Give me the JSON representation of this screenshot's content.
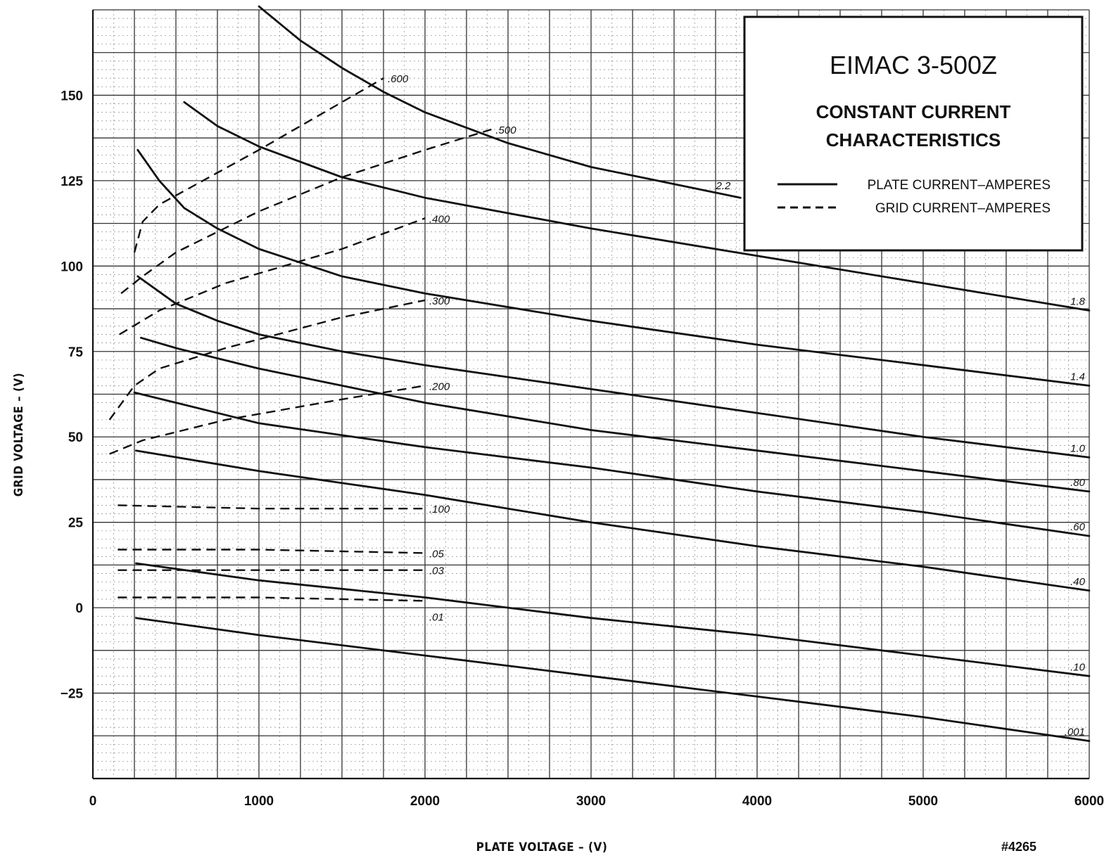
{
  "chart_data": {
    "type": "line",
    "title": "EIMAC 3-500Z",
    "subtitle_line1": "CONSTANT CURRENT",
    "subtitle_line2": "CHARACTERISTICS",
    "xlabel": "PLATE VOLTAGE – (V)",
    "ylabel": "GRID VOLTAGE – (V)",
    "reference": "#4265",
    "xlim": [
      0,
      6000
    ],
    "ylim": [
      -50,
      175
    ],
    "xticks": [
      0,
      1000,
      2000,
      3000,
      4000,
      5000,
      6000
    ],
    "yticks": [
      -25,
      0,
      25,
      50,
      75,
      100,
      125,
      150
    ],
    "xtick_labels": [
      "0",
      "1000",
      "2000",
      "3000",
      "4000",
      "5000",
      "6000"
    ],
    "ytick_labels": [
      "−25",
      "0",
      "25",
      "50",
      "75",
      "100",
      "125",
      "150"
    ],
    "grid": true,
    "legend": {
      "position": "top-right",
      "entries": [
        {
          "style": "solid",
          "label": "PLATE CURRENT–AMPERES"
        },
        {
          "style": "dashed",
          "label": "GRID CURRENT–AMPERES"
        }
      ]
    },
    "series": [
      {
        "group": "plate",
        "label": "2.2",
        "points": [
          [
            1000,
            176
          ],
          [
            1250,
            166
          ],
          [
            1500,
            158
          ],
          [
            1750,
            151
          ],
          [
            2000,
            145
          ],
          [
            2500,
            136
          ],
          [
            3000,
            129
          ],
          [
            3500,
            124
          ],
          [
            3900,
            120
          ]
        ]
      },
      {
        "group": "plate",
        "label": "1.8",
        "points": [
          [
            550,
            148
          ],
          [
            750,
            141
          ],
          [
            1000,
            135
          ],
          [
            1500,
            126
          ],
          [
            2000,
            120
          ],
          [
            3000,
            111
          ],
          [
            4000,
            103
          ],
          [
            5000,
            95
          ],
          [
            6000,
            87
          ]
        ]
      },
      {
        "group": "plate",
        "label": "1.4",
        "points": [
          [
            270,
            134
          ],
          [
            400,
            125
          ],
          [
            550,
            117
          ],
          [
            750,
            111
          ],
          [
            1000,
            105
          ],
          [
            1500,
            97
          ],
          [
            2000,
            92
          ],
          [
            3000,
            84
          ],
          [
            4000,
            77
          ],
          [
            5000,
            71
          ],
          [
            6000,
            65
          ]
        ]
      },
      {
        "group": "plate",
        "label": "1.0",
        "points": [
          [
            270,
            97
          ],
          [
            500,
            89
          ],
          [
            750,
            84
          ],
          [
            1000,
            80
          ],
          [
            1500,
            75
          ],
          [
            2000,
            71
          ],
          [
            3000,
            64
          ],
          [
            4000,
            57
          ],
          [
            5000,
            50
          ],
          [
            6000,
            44
          ]
        ]
      },
      {
        "group": "plate",
        "label": ".80",
        "points": [
          [
            290,
            79
          ],
          [
            500,
            76
          ],
          [
            1000,
            70
          ],
          [
            2000,
            60
          ],
          [
            3000,
            52
          ],
          [
            4000,
            46
          ],
          [
            5000,
            40
          ],
          [
            6000,
            34
          ]
        ]
      },
      {
        "group": "plate",
        "label": ".60",
        "points": [
          [
            250,
            63
          ],
          [
            500,
            60
          ],
          [
            1000,
            54
          ],
          [
            2000,
            47
          ],
          [
            3000,
            41
          ],
          [
            4000,
            34
          ],
          [
            5000,
            28
          ],
          [
            6000,
            21
          ]
        ]
      },
      {
        "group": "plate",
        "label": ".40",
        "points": [
          [
            260,
            46
          ],
          [
            1000,
            40
          ],
          [
            2000,
            33
          ],
          [
            3000,
            25
          ],
          [
            4000,
            18
          ],
          [
            5000,
            12
          ],
          [
            6000,
            5
          ]
        ]
      },
      {
        "group": "plate",
        "label": ".10",
        "points": [
          [
            260,
            13
          ],
          [
            1000,
            8
          ],
          [
            2000,
            3
          ],
          [
            2500,
            0
          ],
          [
            3000,
            -3
          ],
          [
            4000,
            -8
          ],
          [
            5000,
            -14
          ],
          [
            6000,
            -20
          ]
        ]
      },
      {
        "group": "plate",
        "label": ".001",
        "points": [
          [
            260,
            -3
          ],
          [
            1000,
            -8
          ],
          [
            2000,
            -14
          ],
          [
            3000,
            -20
          ],
          [
            4000,
            -26
          ],
          [
            5000,
            -32
          ],
          [
            6000,
            -39
          ]
        ]
      },
      {
        "group": "grid",
        "label": ".600",
        "points": [
          [
            250,
            104
          ],
          [
            300,
            113
          ],
          [
            400,
            118
          ],
          [
            550,
            122
          ],
          [
            1000,
            134
          ],
          [
            1500,
            148
          ],
          [
            1750,
            155
          ]
        ]
      },
      {
        "group": "grid",
        "label": ".500",
        "points": [
          [
            170,
            92
          ],
          [
            300,
            97
          ],
          [
            500,
            104
          ],
          [
            1000,
            116
          ],
          [
            1500,
            126
          ],
          [
            2000,
            134
          ],
          [
            2400,
            140
          ]
        ]
      },
      {
        "group": "grid",
        "label": ".400",
        "points": [
          [
            160,
            80
          ],
          [
            400,
            87
          ],
          [
            800,
            95
          ],
          [
            1500,
            105
          ],
          [
            2000,
            114
          ]
        ]
      },
      {
        "group": "grid",
        "label": ".300",
        "points": [
          [
            100,
            55
          ],
          [
            250,
            65
          ],
          [
            400,
            70
          ],
          [
            800,
            76
          ],
          [
            1500,
            85
          ],
          [
            2000,
            90
          ]
        ]
      },
      {
        "group": "grid",
        "label": ".200",
        "points": [
          [
            100,
            45
          ],
          [
            300,
            49
          ],
          [
            800,
            55
          ],
          [
            1500,
            61
          ],
          [
            2000,
            65
          ]
        ]
      },
      {
        "group": "grid",
        "label": ".100",
        "points": [
          [
            150,
            30
          ],
          [
            1000,
            29
          ],
          [
            2000,
            29
          ]
        ]
      },
      {
        "group": "grid",
        "label": ".05",
        "points": [
          [
            150,
            17
          ],
          [
            1000,
            17
          ],
          [
            2000,
            16
          ]
        ]
      },
      {
        "group": "grid",
        "label": ".03",
        "points": [
          [
            150,
            11
          ],
          [
            1000,
            11
          ],
          [
            2000,
            11
          ]
        ]
      },
      {
        "group": "grid",
        "label": ".01",
        "points": [
          [
            150,
            3
          ],
          [
            1000,
            3
          ],
          [
            2000,
            2
          ]
        ]
      }
    ]
  }
}
